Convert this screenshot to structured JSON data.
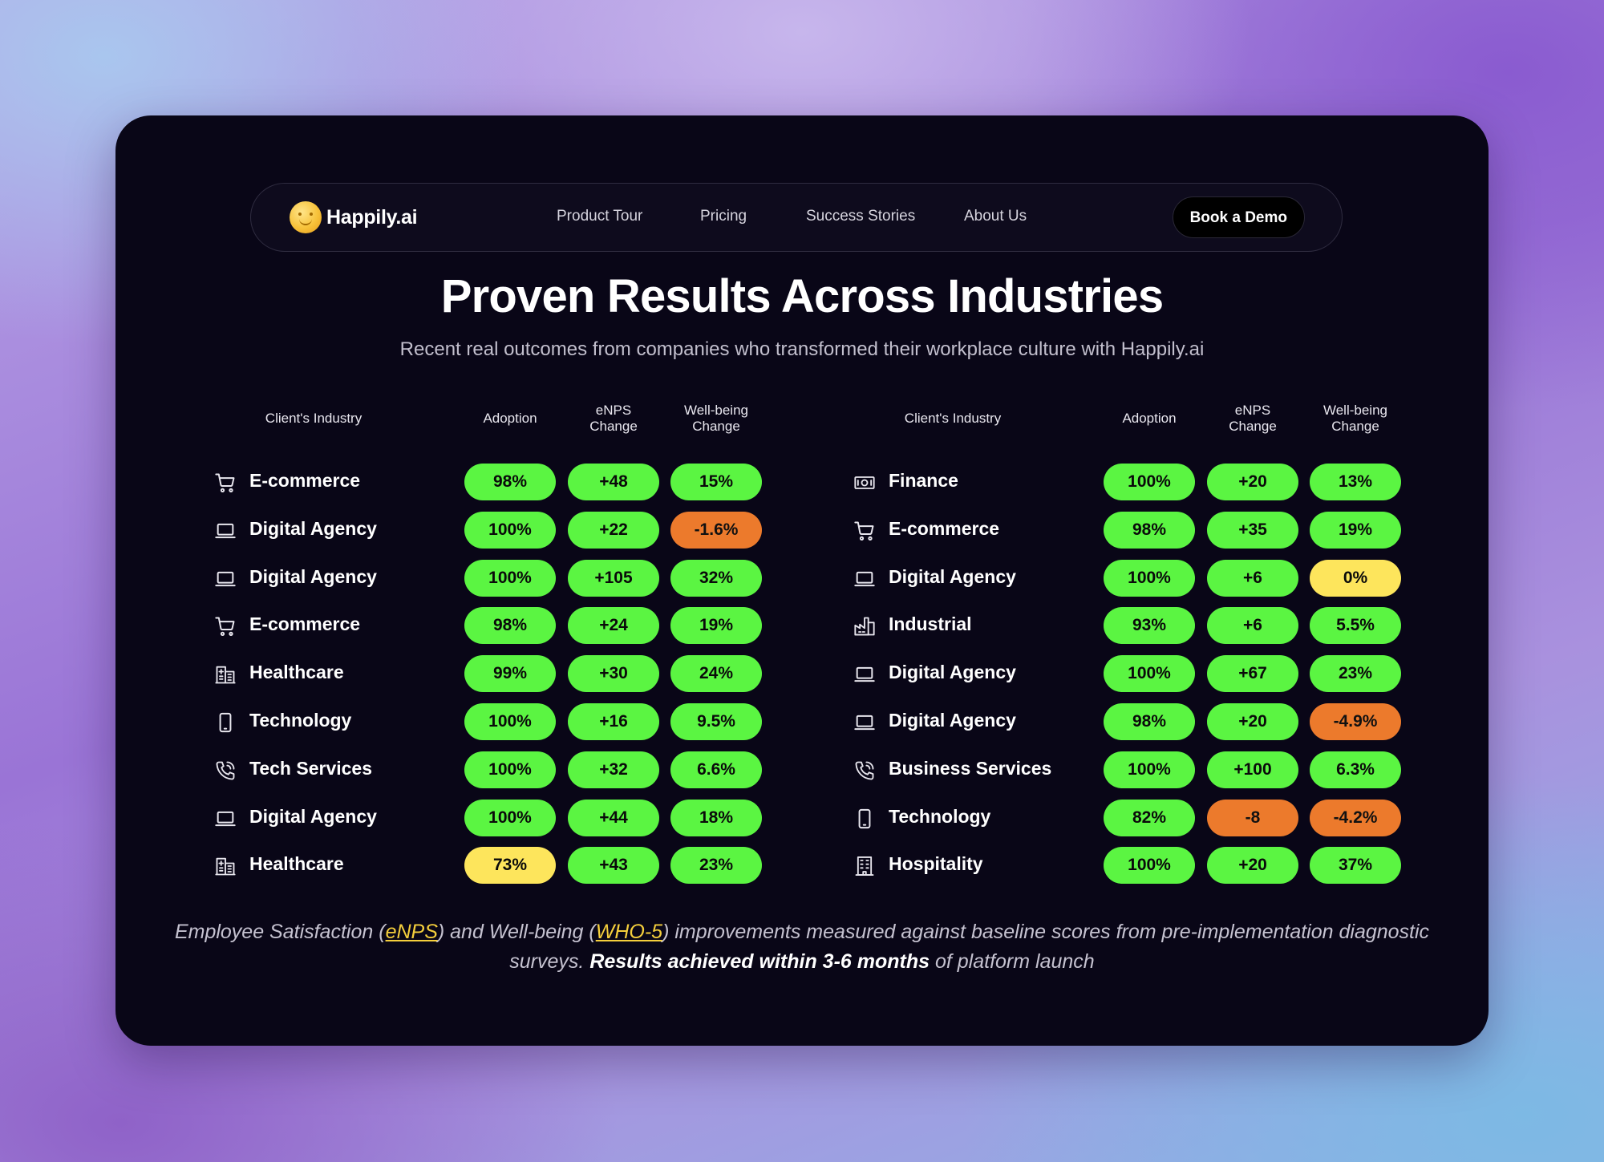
{
  "nav": {
    "logo_text": "Happily.ai",
    "links": [
      "Product Tour",
      "Pricing",
      "Success Stories",
      "About Us"
    ],
    "cta": "Book a Demo"
  },
  "hero": {
    "title": "Proven Results Across Industries",
    "subtitle": "Recent real outcomes from companies who transformed their workplace culture with Happily.ai"
  },
  "headers": {
    "industry": "Client's Industry",
    "adoption": "Adoption",
    "enps_1": "eNPS",
    "enps_2": "Change",
    "wb_1": "Well-being",
    "wb_2": "Change"
  },
  "colors": {
    "green": "#5bf542",
    "yellow": "#fde55c",
    "orange": "#ec7a2c"
  },
  "tables": [
    {
      "rows": [
        {
          "icon": "cart-icon",
          "industry": "E-commerce",
          "adoption": "98%",
          "adoption_c": "green",
          "enps": "+48",
          "enps_c": "green",
          "wellbeing": "15%",
          "wellbeing_c": "green"
        },
        {
          "icon": "laptop-icon",
          "industry": "Digital Agency",
          "adoption": "100%",
          "adoption_c": "green",
          "enps": "+22",
          "enps_c": "green",
          "wellbeing": "-1.6%",
          "wellbeing_c": "orange"
        },
        {
          "icon": "laptop-icon",
          "industry": "Digital Agency",
          "adoption": "100%",
          "adoption_c": "green",
          "enps": "+105",
          "enps_c": "green",
          "wellbeing": "32%",
          "wellbeing_c": "green"
        },
        {
          "icon": "cart-icon",
          "industry": "E-commerce",
          "adoption": "98%",
          "adoption_c": "green",
          "enps": "+24",
          "enps_c": "green",
          "wellbeing": "19%",
          "wellbeing_c": "green"
        },
        {
          "icon": "hospital-icon",
          "industry": "Healthcare",
          "adoption": "99%",
          "adoption_c": "green",
          "enps": "+30",
          "enps_c": "green",
          "wellbeing": "24%",
          "wellbeing_c": "green"
        },
        {
          "icon": "phone-icon",
          "industry": "Technology",
          "adoption": "100%",
          "adoption_c": "green",
          "enps": "+16",
          "enps_c": "green",
          "wellbeing": "9.5%",
          "wellbeing_c": "green"
        },
        {
          "icon": "phone-call-icon",
          "industry": "Tech Services",
          "adoption": "100%",
          "adoption_c": "green",
          "enps": "+32",
          "enps_c": "green",
          "wellbeing": "6.6%",
          "wellbeing_c": "green"
        },
        {
          "icon": "laptop-icon",
          "industry": "Digital Agency",
          "adoption": "100%",
          "adoption_c": "green",
          "enps": "+44",
          "enps_c": "green",
          "wellbeing": "18%",
          "wellbeing_c": "green"
        },
        {
          "icon": "hospital-icon",
          "industry": "Healthcare",
          "adoption": "73%",
          "adoption_c": "yellow",
          "enps": "+43",
          "enps_c": "green",
          "wellbeing": "23%",
          "wellbeing_c": "green"
        }
      ]
    },
    {
      "rows": [
        {
          "icon": "banknote-icon",
          "industry": "Finance",
          "adoption": "100%",
          "adoption_c": "green",
          "enps": "+20",
          "enps_c": "green",
          "wellbeing": "13%",
          "wellbeing_c": "green"
        },
        {
          "icon": "cart-icon",
          "industry": "E-commerce",
          "adoption": "98%",
          "adoption_c": "green",
          "enps": "+35",
          "enps_c": "green",
          "wellbeing": "19%",
          "wellbeing_c": "green"
        },
        {
          "icon": "laptop-icon",
          "industry": "Digital Agency",
          "adoption": "100%",
          "adoption_c": "green",
          "enps": "+6",
          "enps_c": "green",
          "wellbeing": "0%",
          "wellbeing_c": "yellow"
        },
        {
          "icon": "factory-icon",
          "industry": "Industrial",
          "adoption": "93%",
          "adoption_c": "green",
          "enps": "+6",
          "enps_c": "green",
          "wellbeing": "5.5%",
          "wellbeing_c": "green"
        },
        {
          "icon": "laptop-icon",
          "industry": "Digital Agency",
          "adoption": "100%",
          "adoption_c": "green",
          "enps": "+67",
          "enps_c": "green",
          "wellbeing": "23%",
          "wellbeing_c": "green"
        },
        {
          "icon": "laptop-icon",
          "industry": "Digital Agency",
          "adoption": "98%",
          "adoption_c": "green",
          "enps": "+20",
          "enps_c": "green",
          "wellbeing": "-4.9%",
          "wellbeing_c": "orange"
        },
        {
          "icon": "phone-call-icon",
          "industry": "Business Services",
          "adoption": "100%",
          "adoption_c": "green",
          "enps": "+100",
          "enps_c": "green",
          "wellbeing": "6.3%",
          "wellbeing_c": "green"
        },
        {
          "icon": "phone-icon",
          "industry": "Technology",
          "adoption": "82%",
          "adoption_c": "green",
          "enps": "-8",
          "enps_c": "orange",
          "wellbeing": "-4.2%",
          "wellbeing_c": "orange"
        },
        {
          "icon": "building-icon",
          "industry": "Hospitality",
          "adoption": "100%",
          "adoption_c": "green",
          "enps": "+20",
          "enps_c": "green",
          "wellbeing": "37%",
          "wellbeing_c": "green"
        }
      ]
    }
  ],
  "footer": {
    "part1": "Employee Satisfaction (",
    "link1": "eNPS",
    "part2": ") and Well-being (",
    "link2": "WHO-5",
    "part3": ") improvements measured against baseline scores from pre-implementation diagnostic surveys. ",
    "bold": "Results achieved within 3-6 months",
    "part4": " of platform launch"
  }
}
